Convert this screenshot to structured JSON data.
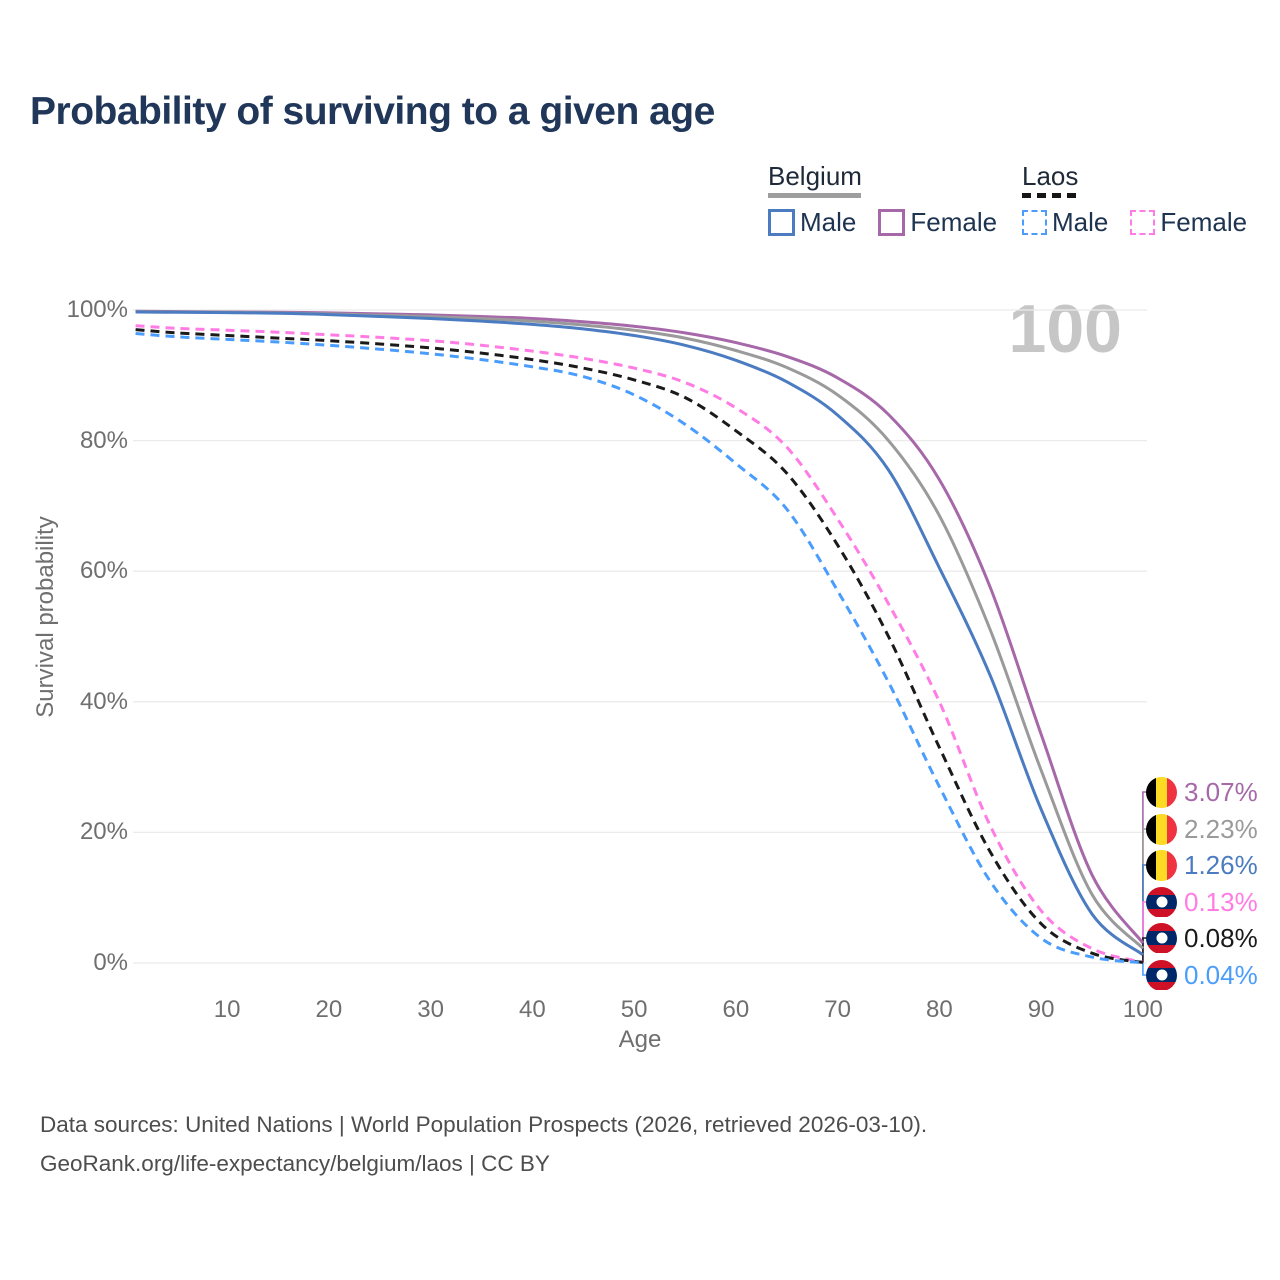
{
  "page": {
    "title": "Probability of surviving to a given age"
  },
  "hover_readout": {
    "age": "100"
  },
  "legend": {
    "groups": [
      {
        "label": "Belgium",
        "line_style": "solid",
        "line_color": "#9e9e9e",
        "items": [
          {
            "label": "Male",
            "series": "Belgium Male"
          },
          {
            "label": "Female",
            "series": "Belgium Female"
          }
        ]
      },
      {
        "label": "Laos",
        "line_style": "dashed",
        "line_color": "#151515",
        "items": [
          {
            "label": "Male",
            "series": "Laos Male"
          },
          {
            "label": "Female",
            "series": "Laos Female"
          }
        ]
      }
    ]
  },
  "flags": {
    "belgium": {
      "black": "#000000",
      "yellow": "#FDDA24",
      "red": "#EF3340"
    },
    "laos": {
      "red": "#CE1126",
      "blue": "#002868",
      "white": "#ffffff"
    }
  },
  "chart_data": {
    "type": "line",
    "title": "Probability of surviving to a given age",
    "xlabel": "Age",
    "ylabel": "Survival probability",
    "xlim": [
      0,
      100
    ],
    "ylim": [
      0,
      100
    ],
    "grid": true,
    "x_ticks": [
      {
        "v": 10,
        "label": "10"
      },
      {
        "v": 20,
        "label": "20"
      },
      {
        "v": 30,
        "label": "30"
      },
      {
        "v": 40,
        "label": "40"
      },
      {
        "v": 50,
        "label": "50"
      },
      {
        "v": 60,
        "label": "60"
      },
      {
        "v": 70,
        "label": "70"
      },
      {
        "v": 80,
        "label": "80"
      },
      {
        "v": 90,
        "label": "90"
      },
      {
        "v": 100,
        "label": "100"
      }
    ],
    "y_ticks": [
      {
        "v": 0,
        "label": "0%"
      },
      {
        "v": 20,
        "label": "20%"
      },
      {
        "v": 40,
        "label": "40%"
      },
      {
        "v": 60,
        "label": "60%"
      },
      {
        "v": 80,
        "label": "80%"
      },
      {
        "v": 100,
        "label": "100%"
      }
    ],
    "series": [
      {
        "name": "Belgium Female",
        "flag": "belgium",
        "color": "#a668a8",
        "dashed": false,
        "end_label": "3.07%",
        "points": [
          [
            1,
            99.8
          ],
          [
            5,
            99.75
          ],
          [
            10,
            99.7
          ],
          [
            15,
            99.65
          ],
          [
            20,
            99.55
          ],
          [
            25,
            99.4
          ],
          [
            30,
            99.25
          ],
          [
            35,
            99.0
          ],
          [
            40,
            98.7
          ],
          [
            45,
            98.2
          ],
          [
            50,
            97.5
          ],
          [
            55,
            96.5
          ],
          [
            60,
            95.0
          ],
          [
            65,
            92.9
          ],
          [
            70,
            89.6
          ],
          [
            75,
            84.0
          ],
          [
            80,
            74.0
          ],
          [
            85,
            57.5
          ],
          [
            90,
            35.0
          ],
          [
            95,
            13.5
          ],
          [
            100,
            3.07
          ]
        ]
      },
      {
        "name": "Belgium Both sexes",
        "flag": "belgium",
        "color": "#9a9a9a",
        "dashed": false,
        "end_label": "2.23%",
        "points": [
          [
            1,
            99.75
          ],
          [
            5,
            99.7
          ],
          [
            10,
            99.65
          ],
          [
            15,
            99.55
          ],
          [
            20,
            99.4
          ],
          [
            25,
            99.2
          ],
          [
            30,
            99.0
          ],
          [
            35,
            98.7
          ],
          [
            40,
            98.3
          ],
          [
            45,
            97.7
          ],
          [
            50,
            96.9
          ],
          [
            55,
            95.7
          ],
          [
            60,
            93.8
          ],
          [
            65,
            91.2
          ],
          [
            70,
            87.0
          ],
          [
            75,
            80.0
          ],
          [
            80,
            68.5
          ],
          [
            85,
            51.0
          ],
          [
            90,
            29.5
          ],
          [
            95,
            10.5
          ],
          [
            100,
            2.23
          ]
        ]
      },
      {
        "name": "Belgium Male",
        "flag": "belgium",
        "color": "#4b7bc0",
        "dashed": false,
        "end_label": "1.26%",
        "points": [
          [
            1,
            99.7
          ],
          [
            5,
            99.65
          ],
          [
            10,
            99.6
          ],
          [
            15,
            99.5
          ],
          [
            20,
            99.3
          ],
          [
            25,
            99.0
          ],
          [
            30,
            98.7
          ],
          [
            35,
            98.3
          ],
          [
            40,
            97.8
          ],
          [
            45,
            97.1
          ],
          [
            50,
            96.1
          ],
          [
            55,
            94.6
          ],
          [
            60,
            92.3
          ],
          [
            65,
            89.0
          ],
          [
            70,
            83.9
          ],
          [
            75,
            75.5
          ],
          [
            80,
            60.5
          ],
          [
            85,
            44.0
          ],
          [
            90,
            23.5
          ],
          [
            95,
            7.5
          ],
          [
            100,
            1.26
          ]
        ]
      },
      {
        "name": "Laos Female",
        "flag": "laos",
        "color": "#ff7ce4",
        "dashed": true,
        "end_label": "0.13%",
        "points": [
          [
            1,
            97.6
          ],
          [
            5,
            97.2
          ],
          [
            10,
            96.9
          ],
          [
            15,
            96.6
          ],
          [
            20,
            96.2
          ],
          [
            25,
            95.8
          ],
          [
            30,
            95.3
          ],
          [
            35,
            94.6
          ],
          [
            40,
            93.7
          ],
          [
            45,
            92.6
          ],
          [
            50,
            91.1
          ],
          [
            55,
            88.9
          ],
          [
            60,
            85.0
          ],
          [
            65,
            79.0
          ],
          [
            70,
            68.0
          ],
          [
            75,
            55.0
          ],
          [
            80,
            40.0
          ],
          [
            85,
            21.0
          ],
          [
            90,
            8.0
          ],
          [
            95,
            2.2
          ],
          [
            100,
            0.13
          ]
        ]
      },
      {
        "name": "Laos Both sexes",
        "flag": "laos",
        "color": "#1a1a1a",
        "dashed": true,
        "end_label": "0.08%",
        "points": [
          [
            1,
            97.0
          ],
          [
            5,
            96.5
          ],
          [
            10,
            96.1
          ],
          [
            15,
            95.7
          ],
          [
            20,
            95.3
          ],
          [
            25,
            94.8
          ],
          [
            30,
            94.2
          ],
          [
            35,
            93.4
          ],
          [
            40,
            92.4
          ],
          [
            45,
            91.1
          ],
          [
            50,
            89.3
          ],
          [
            55,
            86.6
          ],
          [
            60,
            81.5
          ],
          [
            65,
            75.0
          ],
          [
            70,
            64.0
          ],
          [
            75,
            50.0
          ],
          [
            80,
            33.0
          ],
          [
            85,
            17.0
          ],
          [
            90,
            6.0
          ],
          [
            95,
            1.5
          ],
          [
            100,
            0.08
          ]
        ]
      },
      {
        "name": "Laos Male",
        "flag": "laos",
        "color": "#4a9dfc",
        "dashed": true,
        "end_label": "0.04%",
        "points": [
          [
            1,
            96.4
          ],
          [
            5,
            95.9
          ],
          [
            10,
            95.5
          ],
          [
            15,
            95.1
          ],
          [
            20,
            94.6
          ],
          [
            25,
            94.0
          ],
          [
            30,
            93.3
          ],
          [
            35,
            92.4
          ],
          [
            40,
            91.3
          ],
          [
            45,
            89.8
          ],
          [
            50,
            87.0
          ],
          [
            55,
            82.5
          ],
          [
            60,
            76.5
          ],
          [
            65,
            69.5
          ],
          [
            70,
            57.0
          ],
          [
            75,
            43.0
          ],
          [
            80,
            27.0
          ],
          [
            85,
            12.5
          ],
          [
            90,
            3.8
          ],
          [
            95,
            0.9
          ],
          [
            100,
            0.04
          ]
        ]
      }
    ]
  },
  "footer": {
    "line1": "Data sources: United Nations | World Population Prospects (2026, retrieved 2026-03-10).",
    "line2": "GeoRank.org/life-expectancy/belgium/laos | CC BY"
  }
}
